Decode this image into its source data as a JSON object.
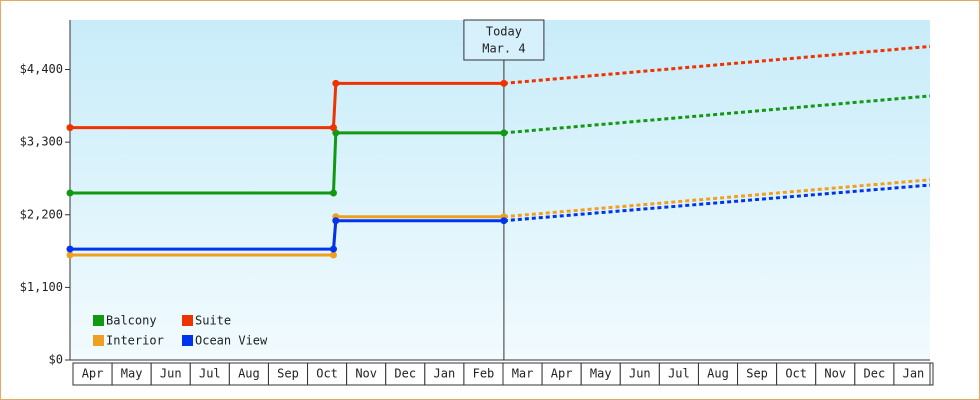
{
  "chart_data": {
    "type": "line",
    "categories": [
      "Apr",
      "May",
      "Jun",
      "Jul",
      "Aug",
      "Sep",
      "Oct",
      "Nov",
      "Dec",
      "Jan",
      "Feb",
      "Mar",
      "Apr",
      "May",
      "Jun",
      "Jul",
      "Aug",
      "Sep",
      "Oct",
      "Nov",
      "Dec",
      "Jan"
    ],
    "xlim": [
      0,
      22
    ],
    "ylim": [
      0,
      5150
    ],
    "yticks": [
      {
        "value": 0,
        "label": "$0"
      },
      {
        "value": 1100,
        "label": "$1,100"
      },
      {
        "value": 2200,
        "label": "$2,200"
      },
      {
        "value": 3300,
        "label": "$3,300"
      },
      {
        "value": 4400,
        "label": "$4,400"
      }
    ],
    "today": {
      "x": 11.1,
      "label": "Today",
      "date": "Mar. 4"
    },
    "legend": "bottom-left",
    "series": [
      {
        "name": "Balcony",
        "color": "#119911",
        "x": [
          0,
          6.74,
          6.8,
          11.1,
          22
        ],
        "values": [
          2530,
          2530,
          3440,
          3440,
          4000
        ]
      },
      {
        "name": "Suite",
        "color": "#ee3300",
        "x": [
          0,
          6.74,
          6.8,
          11.1,
          22
        ],
        "values": [
          3520,
          3520,
          4190,
          4190,
          4750
        ]
      },
      {
        "name": "Interior",
        "color": "#f0a020",
        "x": [
          0,
          6.74,
          6.8,
          11.1,
          22
        ],
        "values": [
          1590,
          1590,
          2170,
          2170,
          2730
        ]
      },
      {
        "name": "Ocean View",
        "color": "#0033ee",
        "x": [
          0,
          6.74,
          6.8,
          11.1,
          22
        ],
        "values": [
          1680,
          1680,
          2110,
          2110,
          2650
        ]
      }
    ]
  }
}
